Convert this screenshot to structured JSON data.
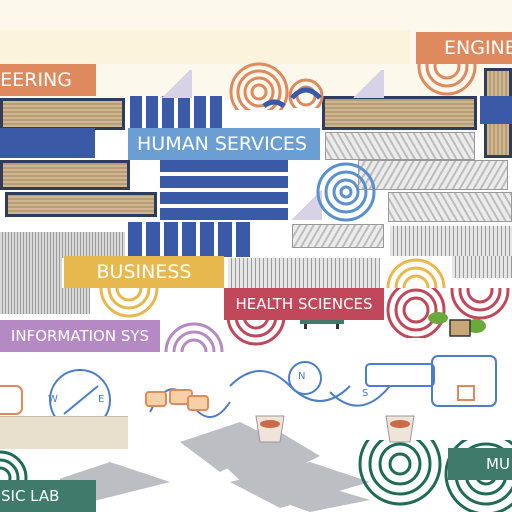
{
  "labels": {
    "engineering_a": "ENGINE",
    "engineering_b": "EERING",
    "human_services": "HUMAN SERVICES",
    "business": "BUSINESS",
    "health_sciences": "HEALTH SCIENCES",
    "information_sys": "INFORMATION SYS",
    "music_a": "MU",
    "music_lab": "SIC LAB"
  },
  "compass": {
    "n": "N",
    "s": "S",
    "w": "W",
    "e": "E"
  },
  "colors": {
    "engineering": "#de8a5e",
    "human_services": "#6b9fd4",
    "business": "#e7b84e",
    "health_sciences": "#c0485a",
    "information_sys": "#b58ac4",
    "music": "#3f7a6a",
    "rug_jute": "#c8b28e",
    "rug_blue": "#3a5aa8"
  }
}
